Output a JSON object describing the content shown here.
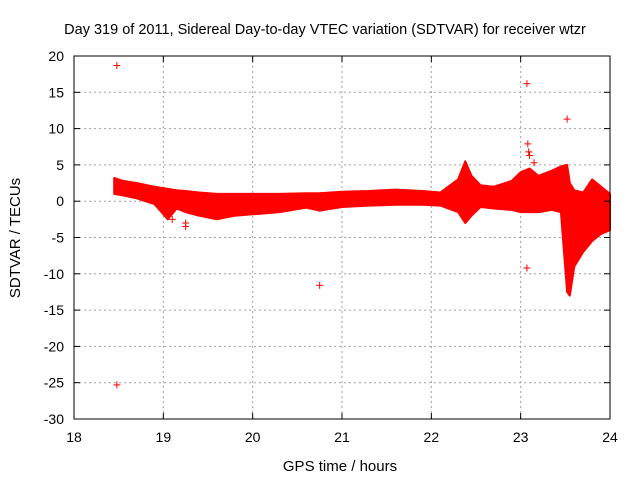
{
  "chart_data": {
    "type": "scatter",
    "title": "Day 319 of 2011, Sidereal Day-to-day VTEC variation (SDTVAR) for receiver wtzr",
    "xlabel": "GPS time / hours",
    "ylabel": "SDTVAR / TECUs",
    "xlim": [
      18,
      24
    ],
    "ylim": [
      -30,
      20
    ],
    "xticks": [
      18,
      19,
      20,
      21,
      22,
      23,
      24
    ],
    "yticks": [
      -30,
      -25,
      -20,
      -15,
      -10,
      -5,
      0,
      5,
      10,
      15,
      20
    ],
    "grid": true,
    "grid_style": "dotted",
    "marker": "+",
    "color": "#ff0000",
    "band": {
      "x": [
        18.45,
        18.55,
        18.7,
        18.9,
        19.05,
        19.15,
        19.25,
        19.4,
        19.6,
        19.8,
        20.0,
        20.3,
        20.6,
        20.75,
        21.0,
        21.3,
        21.6,
        21.9,
        22.1,
        22.3,
        22.38,
        22.45,
        22.55,
        22.7,
        22.9,
        23.0,
        23.1,
        23.2,
        23.35,
        23.45,
        23.52,
        23.55,
        23.6,
        23.7,
        23.8,
        23.9,
        24.0
      ],
      "upper": [
        3.2,
        2.8,
        2.5,
        2.0,
        1.7,
        1.5,
        1.4,
        1.2,
        1.0,
        1.0,
        1.0,
        1.0,
        1.1,
        1.1,
        1.3,
        1.4,
        1.6,
        1.4,
        1.2,
        3.0,
        5.5,
        3.5,
        2.2,
        2.0,
        2.8,
        4.0,
        4.5,
        3.5,
        4.2,
        4.8,
        5.0,
        2.5,
        1.5,
        1.2,
        3.0,
        2.0,
        1.0
      ],
      "lower": [
        1.0,
        0.8,
        0.4,
        -0.4,
        -2.5,
        -1.0,
        -1.5,
        -2.0,
        -2.5,
        -2.0,
        -1.8,
        -1.5,
        -0.9,
        -1.3,
        -0.8,
        -0.6,
        -0.5,
        -0.5,
        -0.6,
        -1.5,
        -3.0,
        -2.0,
        -0.8,
        -1.0,
        -1.2,
        -1.5,
        -1.5,
        -1.5,
        -1.2,
        -1.5,
        -12.5,
        -13.0,
        -9.0,
        -7.0,
        -5.5,
        -4.5,
        -4.0
      ]
    },
    "outliers": [
      {
        "x": 18.48,
        "y": 18.7
      },
      {
        "x": 18.48,
        "y": -25.3
      },
      {
        "x": 20.75,
        "y": -11.6
      },
      {
        "x": 23.07,
        "y": 16.2
      },
      {
        "x": 23.07,
        "y": -9.2
      },
      {
        "x": 23.52,
        "y": 11.3
      },
      {
        "x": 23.08,
        "y": 7.9
      },
      {
        "x": 23.09,
        "y": 6.8
      },
      {
        "x": 23.1,
        "y": 6.3
      },
      {
        "x": 23.15,
        "y": 5.3
      },
      {
        "x": 23.52,
        "y": -7.0
      },
      {
        "x": 19.25,
        "y": -3.5
      },
      {
        "x": 19.25,
        "y": -3.0
      },
      {
        "x": 19.1,
        "y": -2.5
      }
    ]
  }
}
